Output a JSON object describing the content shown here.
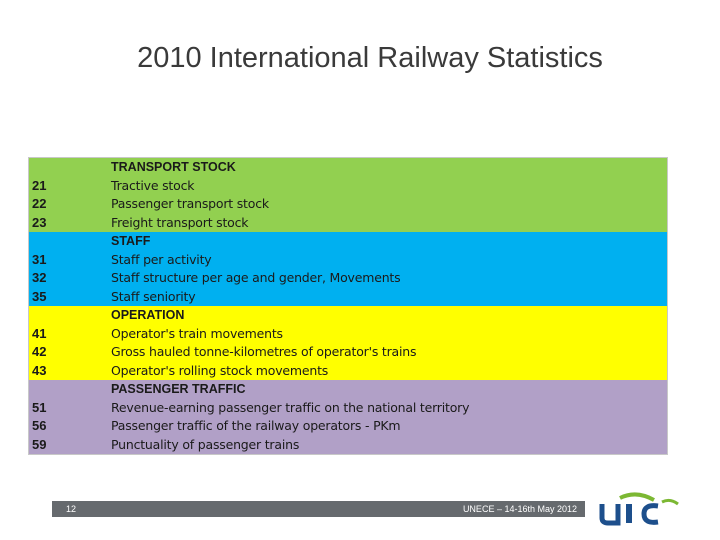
{
  "title": "2010 International Railway Statistics",
  "sections": [
    {
      "color": "#92d050",
      "heading": "TRANSPORT STOCK",
      "rows": [
        {
          "num": "21",
          "text": "Tractive stock"
        },
        {
          "num": "22",
          "text": "Passenger transport stock"
        },
        {
          "num": "23",
          "text": "Freight transport stock"
        }
      ]
    },
    {
      "color": "#00b0f0",
      "heading": "STAFF",
      "rows": [
        {
          "num": "31",
          "text": "Staff per activity"
        },
        {
          "num": "32",
          "text": "Staff structure per age and gender, Movements"
        },
        {
          "num": "35",
          "text": "Staff seniority"
        }
      ]
    },
    {
      "color": "#ffff00",
      "heading": "OPERATION",
      "rows": [
        {
          "num": "41",
          "text": "Operator's train movements"
        },
        {
          "num": "42",
          "text": "Gross hauled tonne-kilometres of operator's trains"
        },
        {
          "num": "43",
          "text": "Operator's rolling stock movements"
        }
      ]
    },
    {
      "color": "#b1a0c7",
      "heading": "PASSENGER TRAFFIC",
      "rows": [
        {
          "num": "51",
          "text": "Revenue-earning passenger traffic on the national territory"
        },
        {
          "num": "56",
          "text": "Passenger traffic of the railway operators - PKm"
        },
        {
          "num": "59",
          "text": "Punctuality of passenger trains"
        }
      ]
    }
  ],
  "footer": {
    "page_number": "12",
    "event": "UNECE – 14-16th May 2012"
  },
  "logo": {
    "text": "uic",
    "icon": "uic-logo-icon",
    "colors": {
      "main": "#1d4f8c",
      "accent": "#7cb833"
    }
  }
}
